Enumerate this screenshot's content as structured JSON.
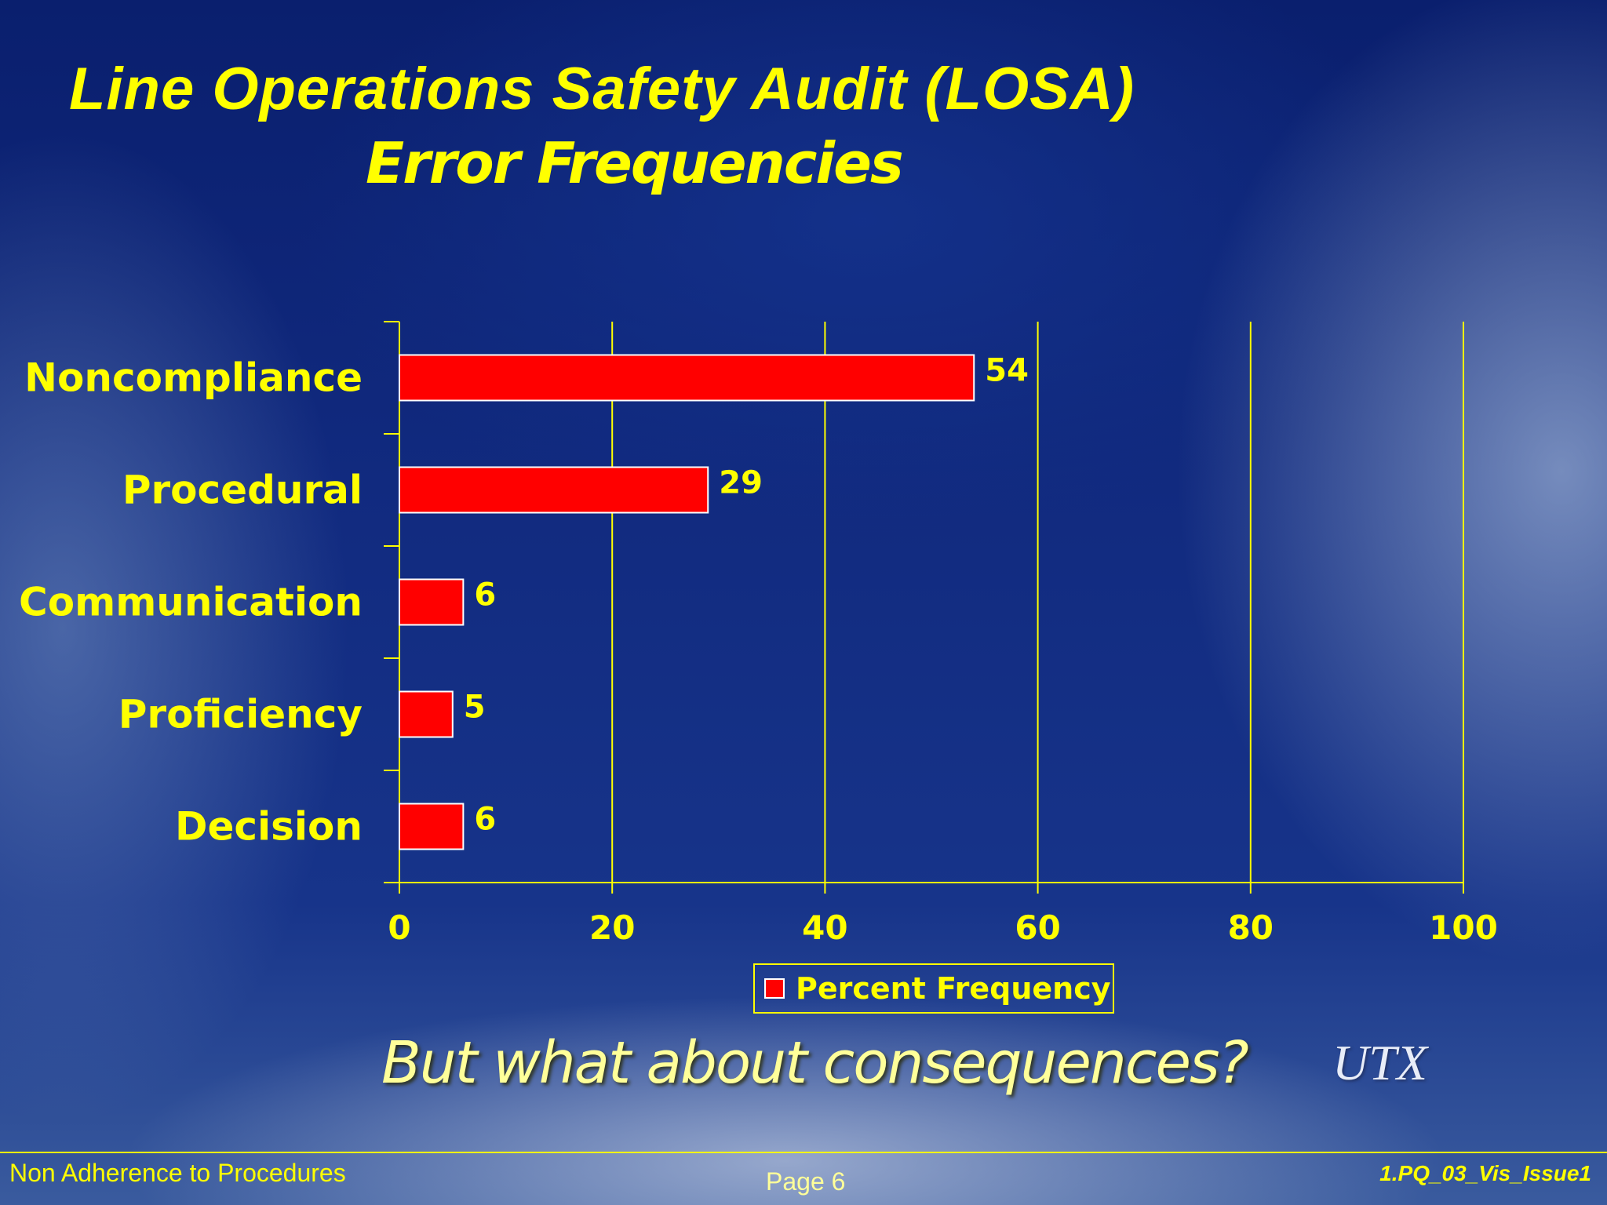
{
  "slide": {
    "title": "Line Operations Safety Audit (LOSA)",
    "subtitle": "Error Frequencies",
    "question": "But what about consequences?",
    "logo": "UTX",
    "footer_left": "Non Adherence to Procedures",
    "footer_center": "Page 6",
    "footer_right": "1.PQ_03_Vis_Issue1"
  },
  "colors": {
    "text": "#ffff00",
    "bar_fill": "#ff0000",
    "bar_border": "#ffffff",
    "grid": "#ffff00"
  },
  "chart_data": {
    "type": "bar",
    "orientation": "horizontal",
    "categories": [
      "Noncompliance",
      "Procedural",
      "Communication",
      "Proficiency",
      "Decision"
    ],
    "series": [
      {
        "name": "Percent Frequency",
        "values": [
          54,
          29,
          6,
          5,
          6
        ]
      }
    ],
    "data_labels": [
      "54",
      "29",
      "6",
      "5",
      "6"
    ],
    "xlim": [
      0,
      100
    ],
    "xticks": [
      0,
      20,
      40,
      60,
      80,
      100
    ],
    "xtick_labels": [
      "0",
      "20",
      "40",
      "60",
      "80",
      "100"
    ],
    "title": "Error Frequencies",
    "xlabel": "",
    "ylabel": "",
    "grid": true,
    "legend_position": "bottom-center"
  }
}
